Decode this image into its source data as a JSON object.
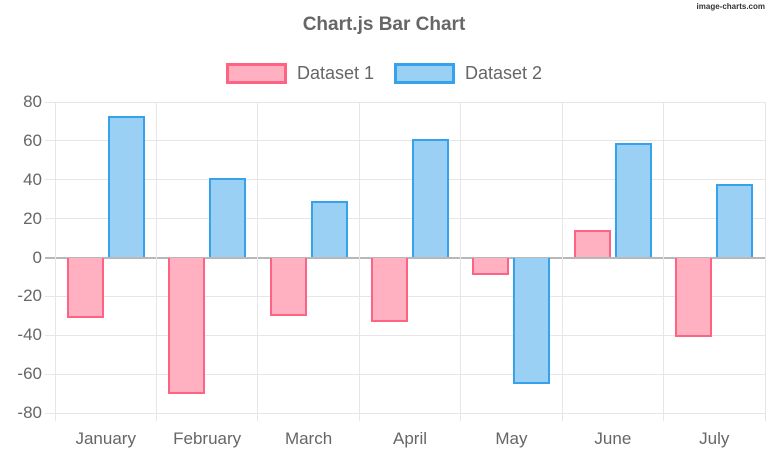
{
  "watermark": "image-charts.com",
  "chart_data": {
    "type": "bar",
    "title": "Chart.js Bar Chart",
    "categories": [
      "January",
      "February",
      "March",
      "April",
      "May",
      "June",
      "July"
    ],
    "series": [
      {
        "name": "Dataset 1",
        "values": [
          -31,
          -70,
          -30,
          -33,
          -9,
          14,
          -41
        ],
        "fill_color": "#ffb1c1",
        "border_color": "#ff6384"
      },
      {
        "name": "Dataset 2",
        "values": [
          73,
          41,
          29,
          61,
          -65,
          59,
          38
        ],
        "fill_color": "#9bd0f5",
        "border_color": "#36a2eb"
      }
    ],
    "xlabel": "",
    "ylabel": "",
    "ylim": [
      -80,
      80
    ],
    "yticks": [
      80,
      60,
      40,
      20,
      0,
      -20,
      -40,
      -60,
      -80
    ],
    "grid": true,
    "legend_position": "top",
    "colors": {
      "grid_line": "#e6e6e6",
      "zero_line": "#b8b8b8",
      "axis_text": "#666666",
      "title_text": "#666666",
      "background": "#ffffff"
    }
  }
}
